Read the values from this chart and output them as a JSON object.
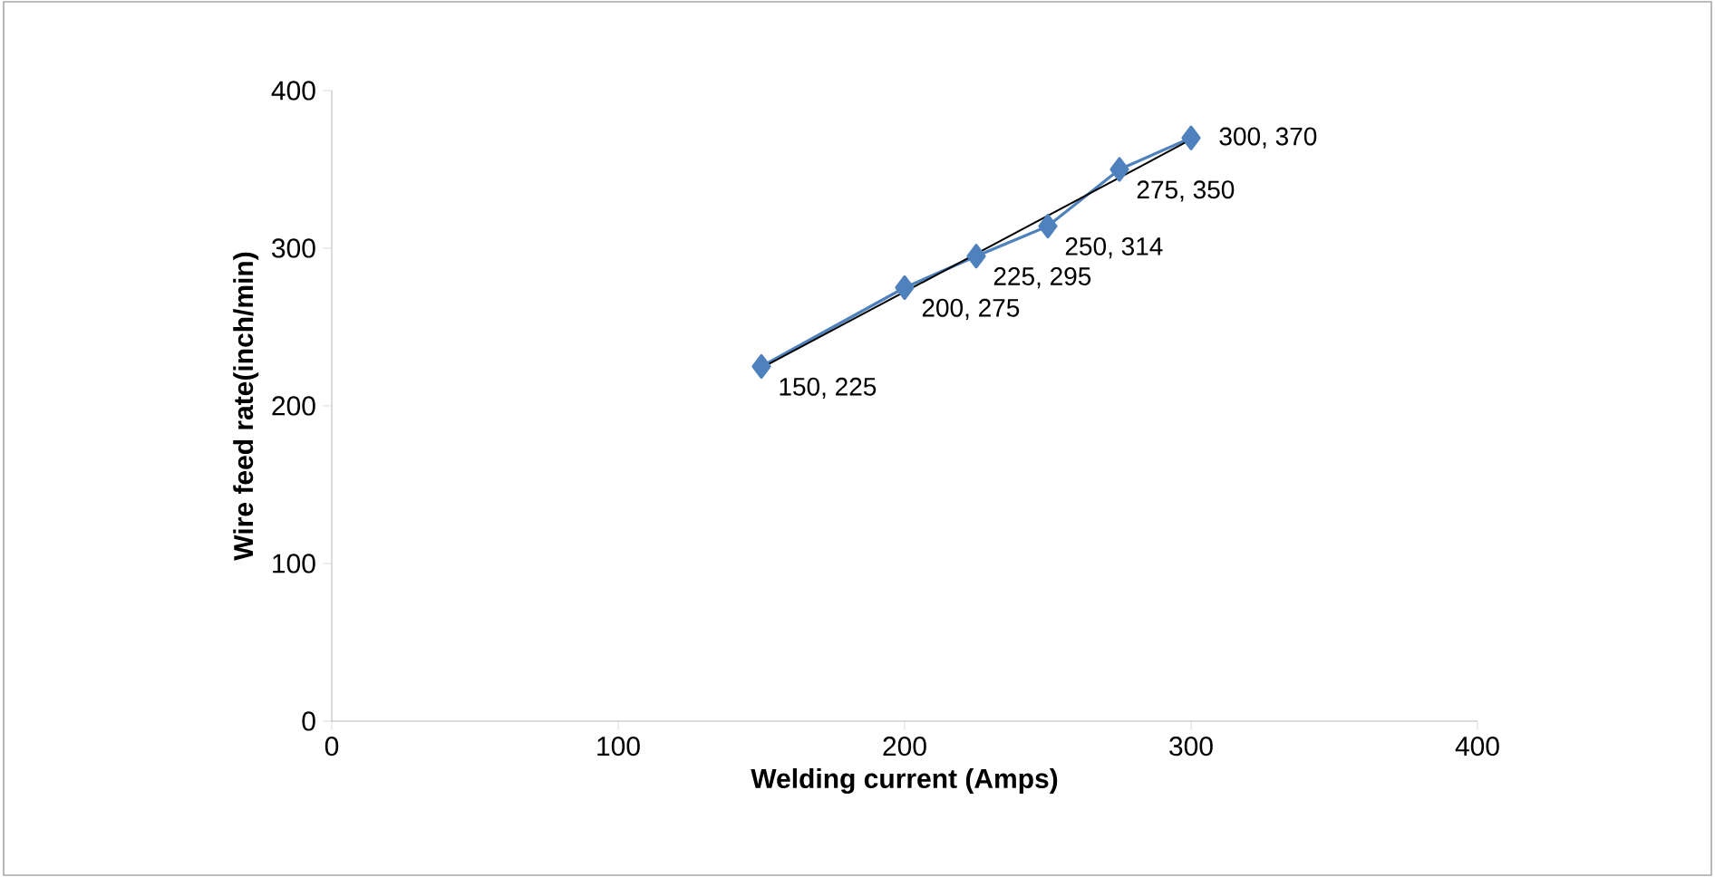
{
  "chart_data": {
    "type": "line",
    "xlabel": "Welding current (Amps)",
    "ylabel": "Wire feed rate(inch/min)",
    "xlim": [
      0,
      400
    ],
    "xticks": [
      0,
      100,
      200,
      300,
      400
    ],
    "ylim": [
      0,
      400
    ],
    "yticks": [
      0,
      100,
      200,
      300,
      400
    ],
    "grid": false,
    "series": [
      {
        "color": "#4f81bd",
        "marker": "diamond",
        "x": [
          150,
          200,
          225,
          250,
          275,
          300
        ],
        "values": [
          225,
          275,
          295,
          314,
          350,
          370
        ],
        "value_labels": [
          "150, 225",
          "200, 275",
          "225, 295",
          "250, 314",
          "275, 350",
          "300, 370"
        ]
      },
      {
        "color": "#000000",
        "marker": "none",
        "x": [
          150,
          300
        ],
        "values": [
          224,
          369
        ]
      }
    ]
  }
}
